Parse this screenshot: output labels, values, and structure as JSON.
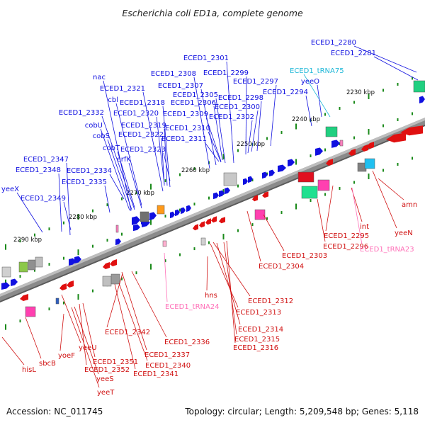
{
  "title": "Escherichia coli ED1a, complete genome",
  "footer": {
    "accession": "Accession: NC_011745",
    "summary": "Topology: circular; Length: 5,209,548 bp; Genes: 5,118"
  },
  "colors": {
    "forward_gene": "#1010e0",
    "reverse_gene": "#e01010",
    "trna": "#30c8e0",
    "trna_reverse": "#ff80c0",
    "backbone": "#808080",
    "tick": "#1a8a1a"
  },
  "scale_labels": [
    "2230 kbp",
    "2240 kbp",
    "2250 kbp",
    "2260 kbp",
    "2270 kbp",
    "2280 kbp",
    "2290 kbp"
  ],
  "labels_top": [
    "ECED1_2280",
    "ECED1_2281",
    "ECED1_2301",
    "ECED1_tRNA75",
    "ECED1_2308",
    "ECED1_2299",
    "yeeO",
    "nac",
    "ECED1_2307",
    "ECED1_2297",
    "ECED1_2321",
    "ECED1_2294",
    "cbl",
    "ECED1_2305",
    "ECED1_2298",
    "ECED1_2318",
    "ECED1_2306",
    "ECED1_2300",
    "ECED1_2332",
    "ECED1_2320",
    "ECED1_2309",
    "ECED1_2302",
    "cobU",
    "ECED1_2319",
    "ECED1_2310",
    "cobS",
    "ECED1_2322",
    "ECED1_2311",
    "cobT",
    "ECED1_2323",
    "erfK",
    "ECED1_2347",
    "ECED1_2348",
    "ECED1_2334",
    "yeeX",
    "ECED1_2335",
    "ECED1_2349"
  ],
  "labels_bottom": [
    "amn",
    "yeeN",
    "int",
    "ECED1_2295",
    "ECED1_2296",
    "ECED1_tRNA23",
    "ECED1_2303",
    "ECED1_2304",
    "hns",
    "ECED1_tRNA24",
    "ECED1_2312",
    "ECED1_2313",
    "ECED1_2314",
    "ECED1_2315",
    "ECED1_2316",
    "ECED1_2336",
    "ECED1_2342",
    "ECED1_2337",
    "ECED1_2340",
    "ECED1_2341",
    "ECED1_2351",
    "ECED1_2352",
    "yeeS",
    "yeeT",
    "yeeU",
    "yoeF",
    "sbcB",
    "hisL"
  ]
}
